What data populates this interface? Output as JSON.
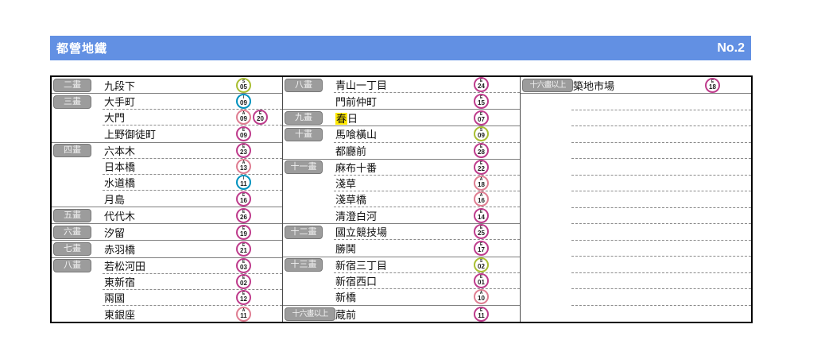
{
  "header": {
    "title": "都營地鐵",
    "page_label": "No.2",
    "bg_color": "#6290E3"
  },
  "highlight_color": "#FFE800",
  "line_colors": {
    "S": "#A9BE32",
    "I": "#0092BE",
    "A": "#DF7E92",
    "E": "#BE3C8C"
  },
  "columns": [
    {
      "rows": [
        {
          "stroke": "二畫",
          "name": "九段下",
          "badges": [
            {
              "line": "S",
              "num": "05"
            }
          ],
          "bottom": "solid"
        },
        {
          "stroke": "三畫",
          "name": "大手町",
          "badges": [
            {
              "line": "I",
              "num": "09"
            }
          ],
          "bottom": "dashed"
        },
        {
          "stroke": "",
          "name": "大門",
          "badges": [
            {
              "line": "A",
              "num": "09"
            },
            {
              "line": "E",
              "num": "20"
            }
          ],
          "bottom": "dashed"
        },
        {
          "stroke": "",
          "name": "上野御徒町",
          "badges": [
            {
              "line": "E",
              "num": "09"
            }
          ],
          "bottom": "solid"
        },
        {
          "stroke": "四畫",
          "name": "六本木",
          "badges": [
            {
              "line": "E",
              "num": "23"
            }
          ],
          "bottom": "dashed"
        },
        {
          "stroke": "",
          "name": "日本橋",
          "badges": [
            {
              "line": "A",
              "num": "13"
            }
          ],
          "bottom": "dashed"
        },
        {
          "stroke": "",
          "name": "水道橋",
          "badges": [
            {
              "line": "I",
              "num": "11"
            }
          ],
          "bottom": "dashed"
        },
        {
          "stroke": "",
          "name": "月島",
          "badges": [
            {
              "line": "E",
              "num": "16"
            }
          ],
          "bottom": "solid"
        },
        {
          "stroke": "五畫",
          "name": "代代木",
          "badges": [
            {
              "line": "E",
              "num": "26"
            }
          ],
          "bottom": "solid"
        },
        {
          "stroke": "六畫",
          "name": "汐留",
          "badges": [
            {
              "line": "E",
              "num": "19"
            }
          ],
          "bottom": "solid"
        },
        {
          "stroke": "七畫",
          "name": "赤羽橋",
          "badges": [
            {
              "line": "E",
              "num": "21"
            }
          ],
          "bottom": "solid"
        },
        {
          "stroke": "八畫",
          "name": "若松河田",
          "badges": [
            {
              "line": "E",
              "num": "03"
            }
          ],
          "bottom": "dashed"
        },
        {
          "stroke": "",
          "name": "東新宿",
          "badges": [
            {
              "line": "E",
              "num": "02"
            }
          ],
          "bottom": "dashed"
        },
        {
          "stroke": "",
          "name": "兩國",
          "badges": [
            {
              "line": "E",
              "num": "12"
            }
          ],
          "bottom": "dashed"
        },
        {
          "stroke": "",
          "name": "東銀座",
          "badges": [
            {
              "line": "A",
              "num": "11"
            }
          ],
          "bottom": "none"
        }
      ]
    },
    {
      "rows": [
        {
          "stroke": "八畫",
          "name": "青山一丁目",
          "badges": [
            {
              "line": "E",
              "num": "24"
            }
          ],
          "bottom": "dashed"
        },
        {
          "stroke": "",
          "name": "門前仲町",
          "badges": [
            {
              "line": "E",
              "num": "15"
            }
          ],
          "bottom": "solid"
        },
        {
          "stroke": "九畫",
          "name": "春日",
          "highlight": "春",
          "badges": [
            {
              "line": "E",
              "num": "07"
            }
          ],
          "bottom": "solid"
        },
        {
          "stroke": "十畫",
          "name": "馬喰橫山",
          "badges": [
            {
              "line": "S",
              "num": "09"
            }
          ],
          "bottom": "dashed"
        },
        {
          "stroke": "",
          "name": "都廳前",
          "badges": [
            {
              "line": "E",
              "num": "28"
            }
          ],
          "bottom": "solid"
        },
        {
          "stroke": "十一畫",
          "name": "麻布十番",
          "badges": [
            {
              "line": "E",
              "num": "22"
            }
          ],
          "bottom": "dashed"
        },
        {
          "stroke": "",
          "name": "淺草",
          "badges": [
            {
              "line": "A",
              "num": "18"
            }
          ],
          "bottom": "dashed"
        },
        {
          "stroke": "",
          "name": "淺草橋",
          "badges": [
            {
              "line": "A",
              "num": "16"
            }
          ],
          "bottom": "dashed"
        },
        {
          "stroke": "",
          "name": "清澄白河",
          "badges": [
            {
              "line": "E",
              "num": "14"
            }
          ],
          "bottom": "solid"
        },
        {
          "stroke": "十二畫",
          "name": "國立競技場",
          "badges": [
            {
              "line": "E",
              "num": "25"
            }
          ],
          "bottom": "dashed"
        },
        {
          "stroke": "",
          "name": "勝鬨",
          "badges": [
            {
              "line": "E",
              "num": "17"
            }
          ],
          "bottom": "solid"
        },
        {
          "stroke": "十三畫",
          "name": "新宿三丁目",
          "badges": [
            {
              "line": "S",
              "num": "02"
            }
          ],
          "bottom": "dashed"
        },
        {
          "stroke": "",
          "name": "新宿西口",
          "badges": [
            {
              "line": "E",
              "num": "01"
            }
          ],
          "bottom": "dashed"
        },
        {
          "stroke": "",
          "name": "新橋",
          "badges": [
            {
              "line": "A",
              "num": "10"
            }
          ],
          "bottom": "solid"
        },
        {
          "stroke": "十六畫以上",
          "name": "蔵前",
          "badges": [
            {
              "line": "E",
              "num": "11"
            }
          ],
          "bottom": "none"
        }
      ]
    },
    {
      "rows": [
        {
          "stroke": "十六畫以上",
          "name": "築地市場",
          "badges": [
            {
              "line": "E",
              "num": "18"
            }
          ],
          "bottom": "solid"
        },
        {
          "stroke": "",
          "name": "",
          "badges": [],
          "bottom": "dashed"
        },
        {
          "stroke": "",
          "name": "",
          "badges": [],
          "bottom": "dashed"
        },
        {
          "stroke": "",
          "name": "",
          "badges": [],
          "bottom": "dashed"
        },
        {
          "stroke": "",
          "name": "",
          "badges": [],
          "bottom": "dashed"
        },
        {
          "stroke": "",
          "name": "",
          "badges": [],
          "bottom": "dashed"
        },
        {
          "stroke": "",
          "name": "",
          "badges": [],
          "bottom": "dashed"
        },
        {
          "stroke": "",
          "name": "",
          "badges": [],
          "bottom": "dashed"
        },
        {
          "stroke": "",
          "name": "",
          "badges": [],
          "bottom": "dashed"
        },
        {
          "stroke": "",
          "name": "",
          "badges": [],
          "bottom": "dashed"
        },
        {
          "stroke": "",
          "name": "",
          "badges": [],
          "bottom": "dashed"
        },
        {
          "stroke": "",
          "name": "",
          "badges": [],
          "bottom": "dashed"
        },
        {
          "stroke": "",
          "name": "",
          "badges": [],
          "bottom": "dashed"
        },
        {
          "stroke": "",
          "name": "",
          "badges": [],
          "bottom": "dashed"
        },
        {
          "stroke": "",
          "name": "",
          "badges": [],
          "bottom": "none"
        }
      ]
    }
  ]
}
